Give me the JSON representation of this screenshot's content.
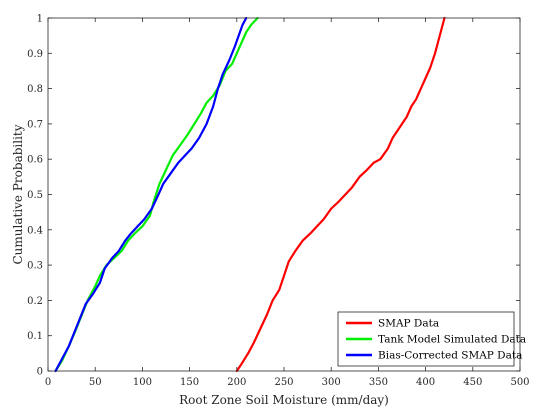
{
  "chart_data": {
    "type": "line",
    "title": "",
    "xlabel": "Root Zone Soil Moisture (mm/day)",
    "ylabel": "Cumulative Probability",
    "xlim": [
      0,
      500
    ],
    "ylim": [
      0,
      1
    ],
    "xticks": [
      0,
      50,
      100,
      150,
      200,
      250,
      300,
      350,
      400,
      450,
      500
    ],
    "yticks": [
      0,
      0.1,
      0.2,
      0.3,
      0.4,
      0.5,
      0.6,
      0.7,
      0.8,
      0.9,
      1
    ],
    "ytick_labels": [
      "0",
      "0.1",
      "0.2",
      "0.3",
      "0.4",
      "0.5",
      "0.6",
      "0.7",
      "0.8",
      "0.9",
      "1"
    ],
    "grid": false,
    "legend_position": "bottom-right",
    "series": [
      {
        "name": "SMAP Data",
        "color": "#ff0000",
        "x": [
          200,
          205,
          212,
          218,
          225,
          232,
          238,
          245,
          250,
          255,
          262,
          270,
          278,
          285,
          292,
          300,
          308,
          315,
          322,
          330,
          338,
          345,
          352,
          360,
          365,
          370,
          375,
          380,
          385,
          390,
          395,
          400,
          405,
          410,
          415,
          420
        ],
        "y": [
          0,
          0.02,
          0.05,
          0.08,
          0.12,
          0.16,
          0.2,
          0.23,
          0.27,
          0.31,
          0.34,
          0.37,
          0.39,
          0.41,
          0.43,
          0.46,
          0.48,
          0.5,
          0.52,
          0.55,
          0.57,
          0.59,
          0.6,
          0.63,
          0.66,
          0.68,
          0.7,
          0.72,
          0.75,
          0.77,
          0.8,
          0.83,
          0.86,
          0.9,
          0.95,
          1
        ]
      },
      {
        "name": "Tank Model Simulated Data",
        "color": "#00ee00",
        "x": [
          8,
          15,
          22,
          30,
          36,
          42,
          50,
          55,
          62,
          70,
          78,
          85,
          92,
          100,
          108,
          112,
          118,
          125,
          132,
          140,
          148,
          155,
          162,
          168,
          175,
          182,
          188,
          195,
          200,
          205,
          210,
          215,
          222
        ],
        "y": [
          0,
          0.03,
          0.07,
          0.12,
          0.16,
          0.2,
          0.24,
          0.27,
          0.3,
          0.32,
          0.34,
          0.37,
          0.39,
          0.41,
          0.44,
          0.48,
          0.53,
          0.57,
          0.61,
          0.64,
          0.67,
          0.7,
          0.73,
          0.76,
          0.78,
          0.81,
          0.85,
          0.87,
          0.9,
          0.93,
          0.96,
          0.98,
          1
        ]
      },
      {
        "name": "Bias-Corrected SMAP Data",
        "color": "#0000ff",
        "x": [
          8,
          14,
          22,
          28,
          34,
          40,
          48,
          55,
          60,
          68,
          75,
          82,
          88,
          95,
          102,
          110,
          117,
          122,
          130,
          138,
          145,
          152,
          160,
          168,
          175,
          180,
          185,
          192,
          198,
          202,
          206,
          210
        ],
        "y": [
          0,
          0.03,
          0.07,
          0.11,
          0.15,
          0.19,
          0.22,
          0.25,
          0.29,
          0.32,
          0.34,
          0.37,
          0.39,
          0.41,
          0.43,
          0.46,
          0.5,
          0.53,
          0.56,
          0.59,
          0.61,
          0.63,
          0.66,
          0.7,
          0.75,
          0.8,
          0.84,
          0.88,
          0.92,
          0.95,
          0.98,
          1
        ]
      }
    ]
  }
}
